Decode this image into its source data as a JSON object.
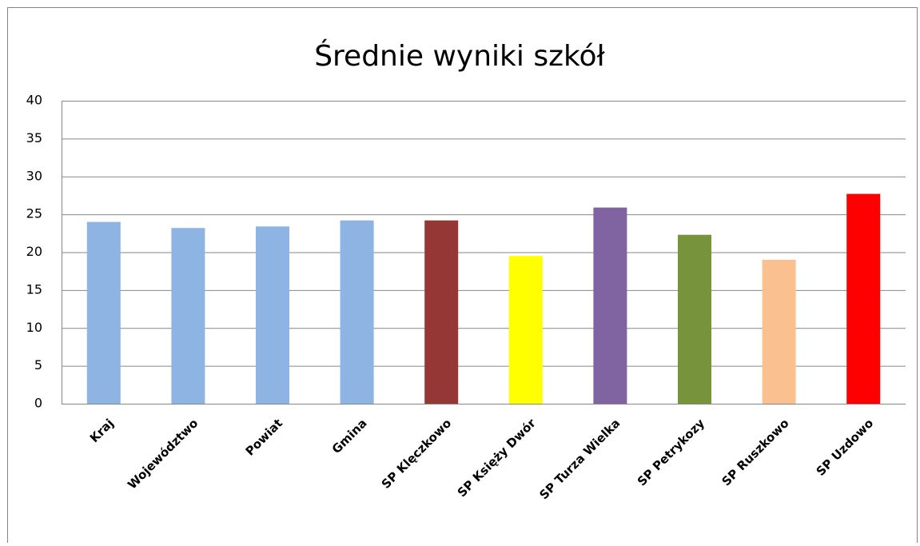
{
  "chart_data": {
    "type": "bar",
    "title": "Średnie wyniki szkół",
    "categories": [
      "Kraj",
      "Województwo",
      "Powiat",
      "Gmina",
      "SP Klęczkowo",
      "SP Księży Dwór",
      "SP Turza Wielka",
      "SP Petrykozy",
      "SP Ruszkowo",
      "SP Uzdowo"
    ],
    "values": [
      24,
      23.2,
      23.4,
      24.2,
      24.2,
      19.5,
      25.9,
      22.3,
      19,
      27.7
    ],
    "colors": [
      "#8eb4e3",
      "#8eb4e3",
      "#8eb4e3",
      "#8eb4e3",
      "#953735",
      "#ffff00",
      "#8064a2",
      "#77933c",
      "#fac090",
      "#ff0000"
    ],
    "ylim": [
      0,
      40
    ],
    "yticks": [
      0,
      5,
      10,
      15,
      20,
      25,
      30,
      35,
      40
    ],
    "grid": true
  }
}
